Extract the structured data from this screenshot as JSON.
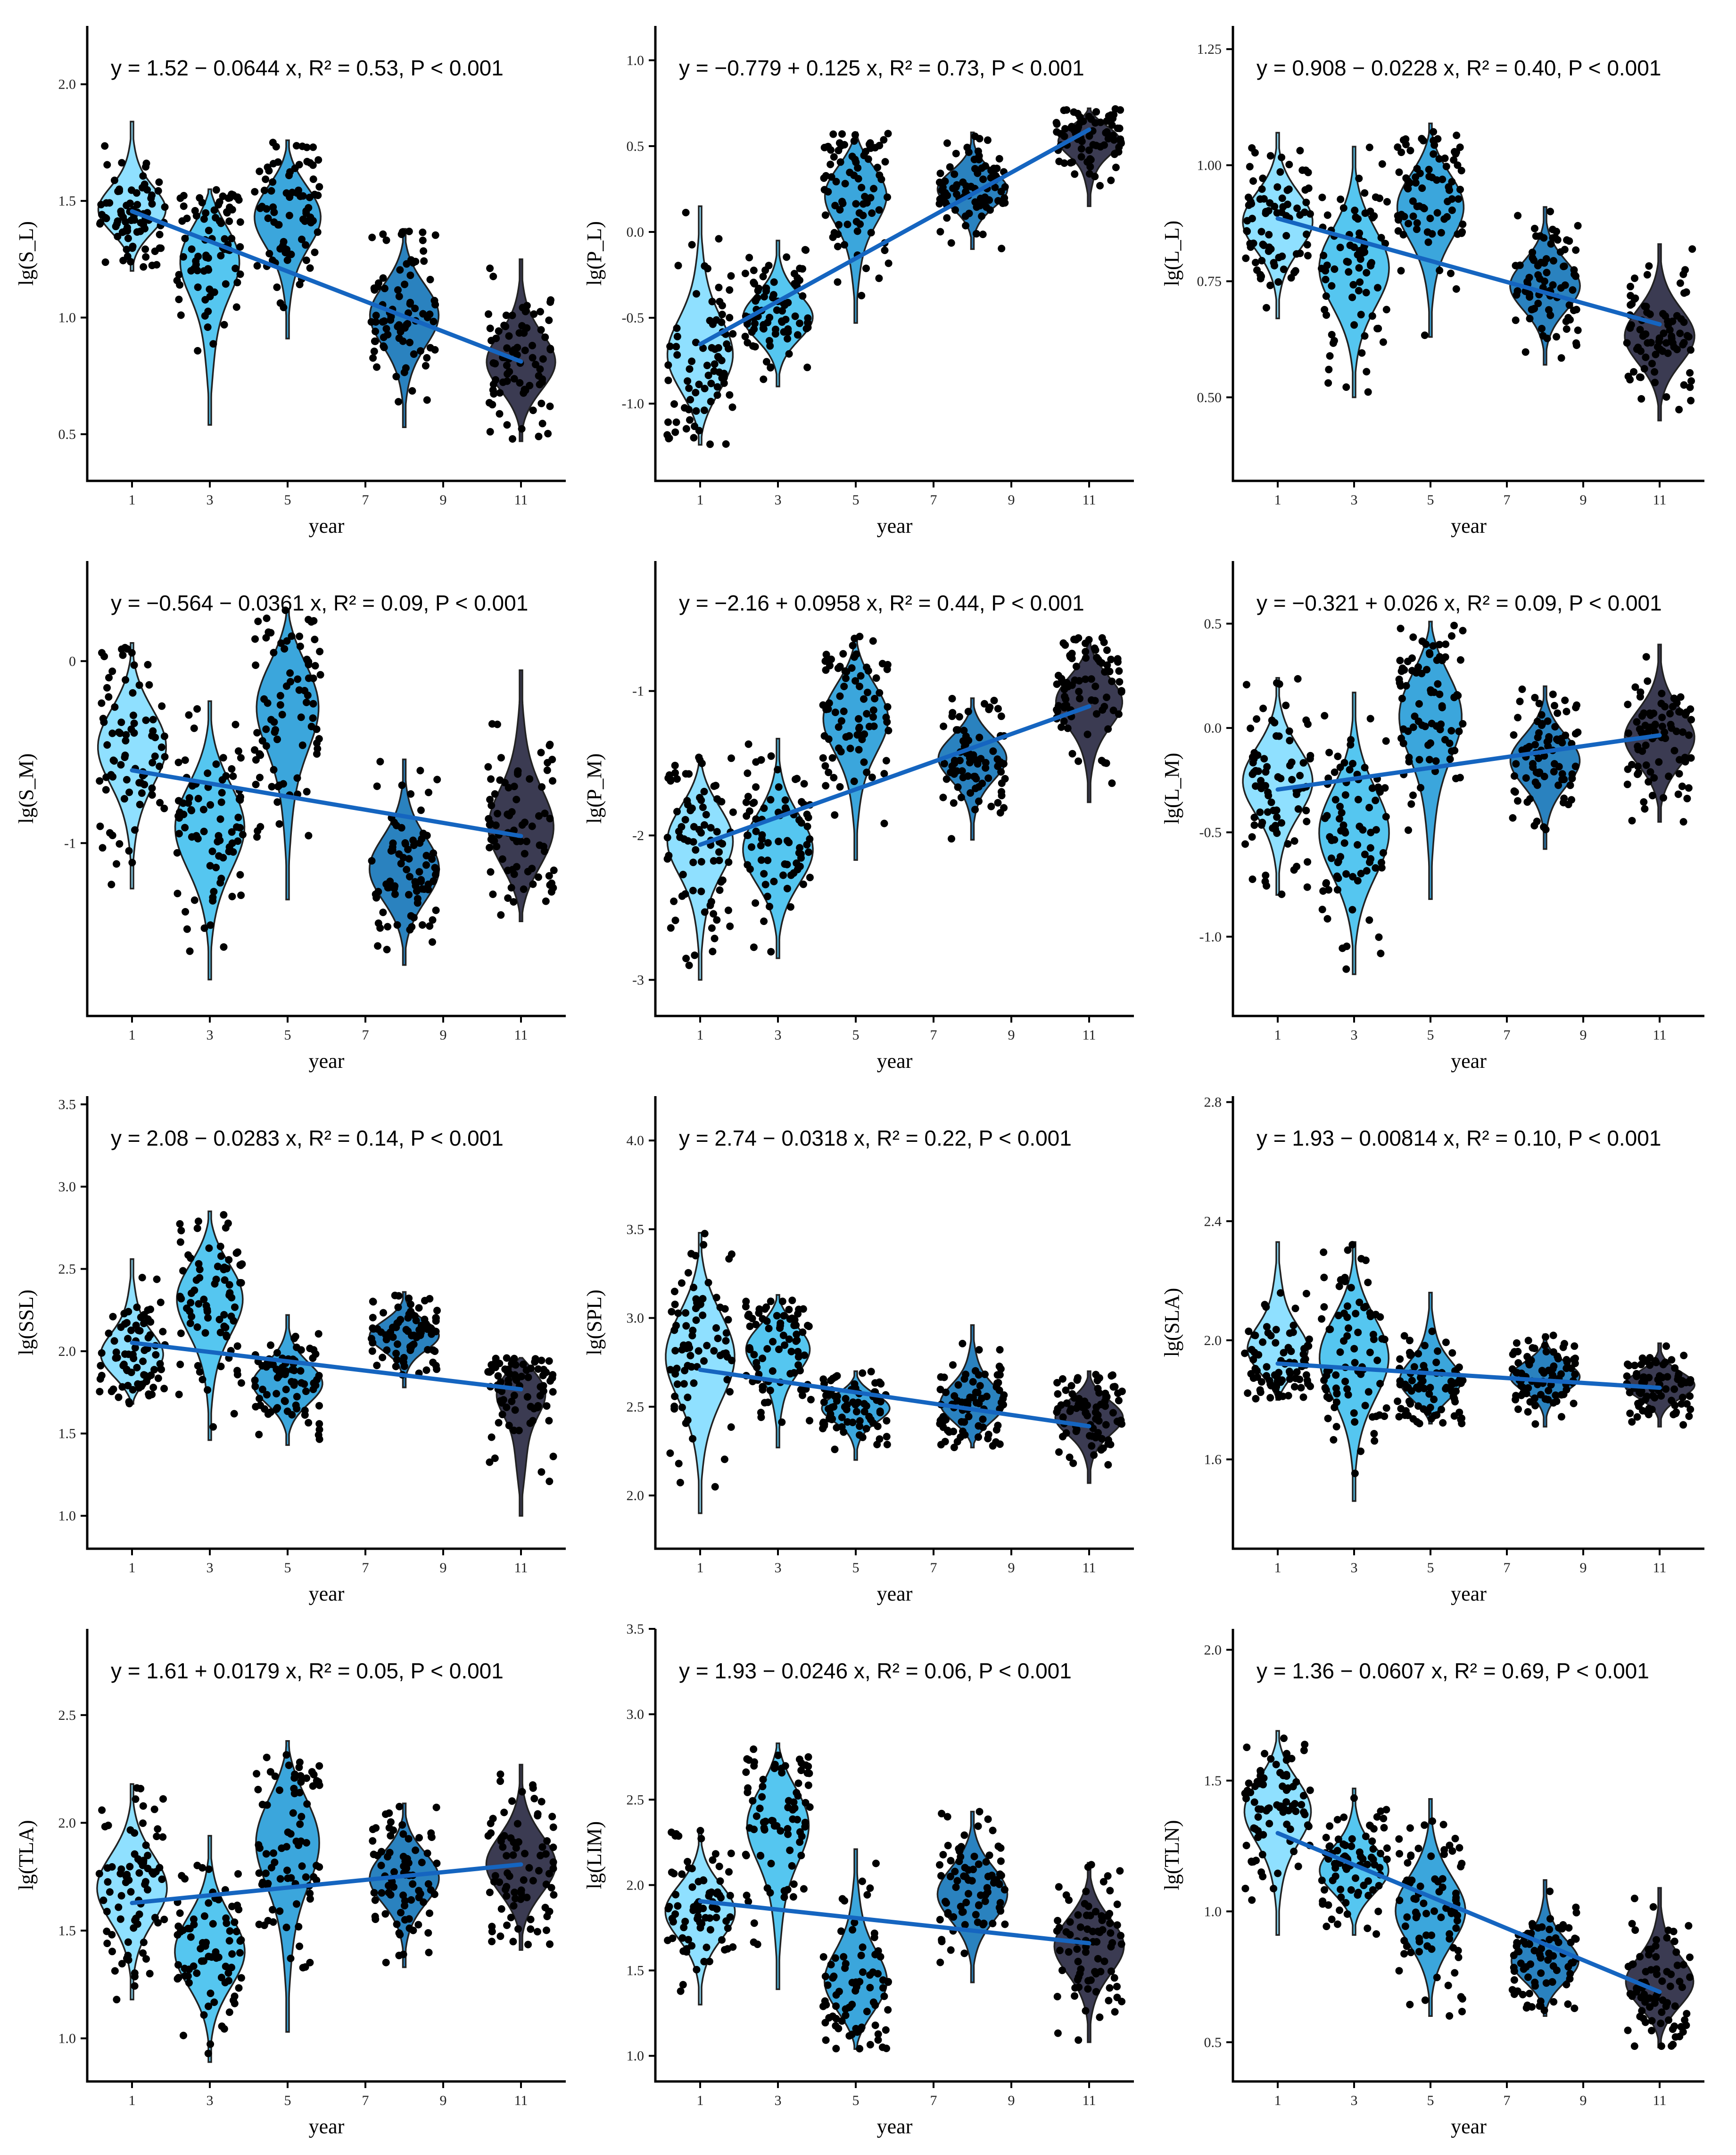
{
  "year_colors": {
    "1": "#8fe0ff",
    "3": "#55c6f0",
    "5": "#3ba6dc",
    "8": "#2a82bf",
    "11": "#3b3b52"
  },
  "line_color": "#1565c0",
  "chart_data": [
    {
      "type": "violin",
      "ylabel": "lg(S_L)",
      "xlabel": "year",
      "equation": "y = 1.52 − 0.0644 x, R² = 0.53, P < 0.001",
      "xticks": [
        1,
        3,
        5,
        7,
        9,
        11
      ],
      "ylim": [
        0.3,
        2.25
      ],
      "yticks": [
        0.5,
        1.0,
        1.5,
        2.0
      ],
      "ytick_labels": [
        "0.5",
        "1.0",
        "1.5",
        "2.0"
      ],
      "fit": {
        "intercept": 1.52,
        "slope": -0.0644
      },
      "groups": [
        {
          "year": 1,
          "min": 1.2,
          "max": 1.84,
          "mode": 1.45
        },
        {
          "year": 3,
          "min": 0.54,
          "max": 1.55,
          "mode": 1.28
        },
        {
          "year": 5,
          "min": 0.91,
          "max": 1.76,
          "mode": 1.45
        },
        {
          "year": 8,
          "min": 0.53,
          "max": 1.38,
          "mode": 1.02
        },
        {
          "year": 11,
          "min": 0.47,
          "max": 1.25,
          "mode": 0.8
        }
      ]
    },
    {
      "type": "violin",
      "ylabel": "lg(P_L)",
      "xlabel": "year",
      "equation": "y = −0.779 + 0.125 x, R² = 0.73, P < 0.001",
      "xticks": [
        1,
        3,
        5,
        7,
        9,
        11
      ],
      "ylim": [
        -1.45,
        1.2
      ],
      "yticks": [
        -1.0,
        -0.5,
        0.0,
        0.5,
        1.0
      ],
      "ytick_labels": [
        "-1.0",
        "-0.5",
        "0.0",
        "0.5",
        "1.0"
      ],
      "fit": {
        "intercept": -0.779,
        "slope": 0.125
      },
      "groups": [
        {
          "year": 1,
          "min": -1.24,
          "max": 0.15,
          "mode": -0.75
        },
        {
          "year": 3,
          "min": -0.9,
          "max": -0.05,
          "mode": -0.5
        },
        {
          "year": 5,
          "min": -0.53,
          "max": 0.58,
          "mode": 0.25
        },
        {
          "year": 8,
          "min": -0.1,
          "max": 0.58,
          "mode": 0.25
        },
        {
          "year": 11,
          "min": 0.15,
          "max": 0.72,
          "mode": 0.55
        }
      ]
    },
    {
      "type": "violin",
      "ylabel": "lg(L_L)",
      "xlabel": "year",
      "equation": "y = 0.908 − 0.0228 x, R² = 0.40, P < 0.001",
      "xticks": [
        1,
        3,
        5,
        7,
        9,
        11
      ],
      "ylim": [
        0.32,
        1.3
      ],
      "yticks": [
        0.5,
        0.75,
        1.0,
        1.25
      ],
      "ytick_labels": [
        "0.50",
        "0.75",
        "1.00",
        "1.25"
      ],
      "fit": {
        "intercept": 0.908,
        "slope": -0.0228
      },
      "groups": [
        {
          "year": 1,
          "min": 0.67,
          "max": 1.07,
          "mode": 0.88
        },
        {
          "year": 3,
          "min": 0.5,
          "max": 1.04,
          "mode": 0.78
        },
        {
          "year": 5,
          "min": 0.63,
          "max": 1.09,
          "mode": 0.92
        },
        {
          "year": 8,
          "min": 0.57,
          "max": 0.91,
          "mode": 0.74
        },
        {
          "year": 11,
          "min": 0.45,
          "max": 0.83,
          "mode": 0.63
        }
      ]
    },
    {
      "type": "violin",
      "ylabel": "lg(S_M)",
      "xlabel": "year",
      "equation": "y = −0.564 − 0.0361 x, R² = 0.09, P < 0.001",
      "xticks": [
        1,
        3,
        5,
        7,
        9,
        11
      ],
      "ylim": [
        -1.95,
        0.55
      ],
      "yticks": [
        -1,
        0
      ],
      "ytick_labels": [
        "-1",
        "0"
      ],
      "fit": {
        "intercept": -0.564,
        "slope": -0.0361
      },
      "groups": [
        {
          "year": 1,
          "min": -1.25,
          "max": 0.1,
          "mode": -0.45
        },
        {
          "year": 3,
          "min": -1.75,
          "max": -0.22,
          "mode": -0.9
        },
        {
          "year": 5,
          "min": -1.31,
          "max": 0.28,
          "mode": -0.2
        },
        {
          "year": 8,
          "min": -1.67,
          "max": -0.54,
          "mode": -1.15
        },
        {
          "year": 11,
          "min": -1.43,
          "max": -0.05,
          "mode": -0.95
        }
      ]
    },
    {
      "type": "violin",
      "ylabel": "lg(P_M)",
      "xlabel": "year",
      "equation": "y = −2.16 + 0.0958 x, R² = 0.44, P < 0.001",
      "xticks": [
        1,
        3,
        5,
        7,
        9,
        11
      ],
      "ylim": [
        -3.25,
        -0.1
      ],
      "yticks": [
        -3,
        -2,
        -1
      ],
      "ytick_labels": [
        "-3",
        "-2",
        "-1"
      ],
      "fit": {
        "intercept": -2.16,
        "slope": 0.0958
      },
      "groups": [
        {
          "year": 1,
          "min": -3.0,
          "max": -1.45,
          "mode": -2.0
        },
        {
          "year": 3,
          "min": -2.85,
          "max": -1.33,
          "mode": -2.1
        },
        {
          "year": 5,
          "min": -2.17,
          "max": -0.62,
          "mode": -1.15
        },
        {
          "year": 8,
          "min": -2.03,
          "max": -1.05,
          "mode": -1.45
        },
        {
          "year": 11,
          "min": -1.77,
          "max": -0.63,
          "mode": -1.05
        }
      ]
    },
    {
      "type": "violin",
      "ylabel": "lg(L_M)",
      "xlabel": "year",
      "equation": "y = −0.321 + 0.026 x, R² = 0.09, P < 0.001",
      "xticks": [
        1,
        3,
        5,
        7,
        9,
        11
      ],
      "ylim": [
        -1.38,
        0.8
      ],
      "yticks": [
        -1.0,
        -0.5,
        0.0,
        0.5
      ],
      "ytick_labels": [
        "-1.0",
        "-0.5",
        "0.0",
        "0.5"
      ],
      "fit": {
        "intercept": -0.321,
        "slope": 0.026
      },
      "groups": [
        {
          "year": 1,
          "min": -0.8,
          "max": 0.24,
          "mode": -0.25
        },
        {
          "year": 3,
          "min": -1.18,
          "max": 0.17,
          "mode": -0.5
        },
        {
          "year": 5,
          "min": -0.82,
          "max": 0.51,
          "mode": 0.1
        },
        {
          "year": 8,
          "min": -0.58,
          "max": 0.2,
          "mode": -0.15
        },
        {
          "year": 11,
          "min": -0.45,
          "max": 0.4,
          "mode": -0.05
        }
      ]
    },
    {
      "type": "violin",
      "ylabel": "lg(SSL)",
      "xlabel": "year",
      "equation": "y = 2.08 − 0.0283 x, R² = 0.14, P < 0.001",
      "xticks": [
        1,
        3,
        5,
        7,
        9,
        11
      ],
      "ylim": [
        0.8,
        3.55
      ],
      "yticks": [
        1.0,
        1.5,
        2.0,
        2.5,
        3.0,
        3.5
      ],
      "ytick_labels": [
        "1.0",
        "1.5",
        "2.0",
        "2.5",
        "3.0",
        "3.5"
      ],
      "fit": {
        "intercept": 2.08,
        "slope": -0.0283
      },
      "groups": [
        {
          "year": 1,
          "min": 1.68,
          "max": 2.56,
          "mode": 1.95
        },
        {
          "year": 3,
          "min": 1.46,
          "max": 2.85,
          "mode": 2.35
        },
        {
          "year": 5,
          "min": 1.43,
          "max": 2.22,
          "mode": 1.8
        },
        {
          "year": 8,
          "min": 1.78,
          "max": 2.36,
          "mode": 2.1
        },
        {
          "year": 11,
          "min": 1.0,
          "max": 1.96,
          "mode": 1.8
        }
      ]
    },
    {
      "type": "violin",
      "ylabel": "lg(SPL)",
      "xlabel": "year",
      "equation": "y = 2.74 − 0.0318 x, R² = 0.22, P < 0.001",
      "xticks": [
        1,
        3,
        5,
        7,
        9,
        11
      ],
      "ylim": [
        1.7,
        4.25
      ],
      "yticks": [
        2.0,
        2.5,
        3.0,
        3.5,
        4.0
      ],
      "ytick_labels": [
        "2.0",
        "2.5",
        "3.0",
        "3.5",
        "4.0"
      ],
      "fit": {
        "intercept": 2.74,
        "slope": -0.0318
      },
      "groups": [
        {
          "year": 1,
          "min": 1.9,
          "max": 3.48,
          "mode": 2.8
        },
        {
          "year": 3,
          "min": 2.27,
          "max": 3.13,
          "mode": 2.85
        },
        {
          "year": 5,
          "min": 2.2,
          "max": 2.7,
          "mode": 2.5
        },
        {
          "year": 8,
          "min": 2.27,
          "max": 2.96,
          "mode": 2.5
        },
        {
          "year": 11,
          "min": 2.07,
          "max": 2.7,
          "mode": 2.45
        }
      ]
    },
    {
      "type": "violin",
      "ylabel": "lg(SLA)",
      "xlabel": "year",
      "equation": "y = 1.93 − 0.00814 x, R² = 0.10, P < 0.001",
      "xticks": [
        1,
        3,
        5,
        7,
        9,
        11
      ],
      "ylim": [
        1.3,
        2.82
      ],
      "yticks": [
        1.6,
        2.0,
        2.4,
        2.8
      ],
      "ytick_labels": [
        "1.6",
        "2.0",
        "2.4",
        "2.8"
      ],
      "fit": {
        "intercept": 1.93,
        "slope": -0.00814
      },
      "groups": [
        {
          "year": 1,
          "min": 1.8,
          "max": 2.33,
          "mode": 1.95
        },
        {
          "year": 3,
          "min": 1.46,
          "max": 2.33,
          "mode": 1.95
        },
        {
          "year": 5,
          "min": 1.72,
          "max": 2.16,
          "mode": 1.85
        },
        {
          "year": 8,
          "min": 1.71,
          "max": 2.02,
          "mode": 1.88
        },
        {
          "year": 11,
          "min": 1.71,
          "max": 1.99,
          "mode": 1.85
        }
      ]
    },
    {
      "type": "violin",
      "ylabel": "lg(TLA)",
      "xlabel": "year",
      "equation": "y = 1.61 + 0.0179 x, R² = 0.05, P < 0.001",
      "xticks": [
        1,
        3,
        5,
        7,
        9,
        11
      ],
      "ylim": [
        0.8,
        2.9
      ],
      "yticks": [
        1.0,
        1.5,
        2.0,
        2.5
      ],
      "ytick_labels": [
        "1.0",
        "1.5",
        "2.0",
        "2.5"
      ],
      "fit": {
        "intercept": 1.61,
        "slope": 0.0179
      },
      "groups": [
        {
          "year": 1,
          "min": 1.18,
          "max": 2.18,
          "mode": 1.7
        },
        {
          "year": 3,
          "min": 0.89,
          "max": 1.94,
          "mode": 1.4
        },
        {
          "year": 5,
          "min": 1.03,
          "max": 2.38,
          "mode": 1.95
        },
        {
          "year": 8,
          "min": 1.33,
          "max": 2.09,
          "mode": 1.75
        },
        {
          "year": 11,
          "min": 1.41,
          "max": 2.27,
          "mode": 1.8
        }
      ]
    },
    {
      "type": "violin",
      "ylabel": "lg(LIM)",
      "xlabel": "year",
      "equation": "y = 1.93 − 0.0246 x, R² = 0.06, P < 0.001",
      "xticks": [
        1,
        3,
        5,
        7,
        9,
        11
      ],
      "ylim": [
        0.85,
        3.5
      ],
      "yticks": [
        1.0,
        1.5,
        2.0,
        2.5,
        3.0,
        3.5
      ],
      "ytick_labels": [
        "1.0",
        "1.5",
        "2.0",
        "2.5",
        "3.0",
        "3.5"
      ],
      "fit": {
        "intercept": 1.93,
        "slope": -0.0246
      },
      "groups": [
        {
          "year": 1,
          "min": 1.3,
          "max": 2.32,
          "mode": 1.85
        },
        {
          "year": 3,
          "min": 1.39,
          "max": 2.83,
          "mode": 2.4
        },
        {
          "year": 5,
          "min": 1.04,
          "max": 2.21,
          "mode": 1.4
        },
        {
          "year": 8,
          "min": 1.43,
          "max": 2.43,
          "mode": 1.95
        },
        {
          "year": 11,
          "min": 1.08,
          "max": 2.13,
          "mode": 1.65
        }
      ]
    },
    {
      "type": "violin",
      "ylabel": "lg(TLN)",
      "xlabel": "year",
      "equation": "y = 1.36 − 0.0607 x, R² = 0.69, P < 0.001",
      "xticks": [
        1,
        3,
        5,
        7,
        9,
        11
      ],
      "ylim": [
        0.35,
        2.08
      ],
      "yticks": [
        0.5,
        1.0,
        1.5,
        2.0
      ],
      "ytick_labels": [
        "0.5",
        "1.0",
        "1.5",
        "2.0"
      ],
      "fit": {
        "intercept": 1.36,
        "slope": -0.0607
      },
      "groups": [
        {
          "year": 1,
          "min": 0.91,
          "max": 1.69,
          "mode": 1.4
        },
        {
          "year": 3,
          "min": 0.91,
          "max": 1.47,
          "mode": 1.15
        },
        {
          "year": 5,
          "min": 0.6,
          "max": 1.43,
          "mode": 1.0
        },
        {
          "year": 8,
          "min": 0.6,
          "max": 1.12,
          "mode": 0.8
        },
        {
          "year": 11,
          "min": 0.48,
          "max": 1.09,
          "mode": 0.72
        }
      ]
    }
  ]
}
